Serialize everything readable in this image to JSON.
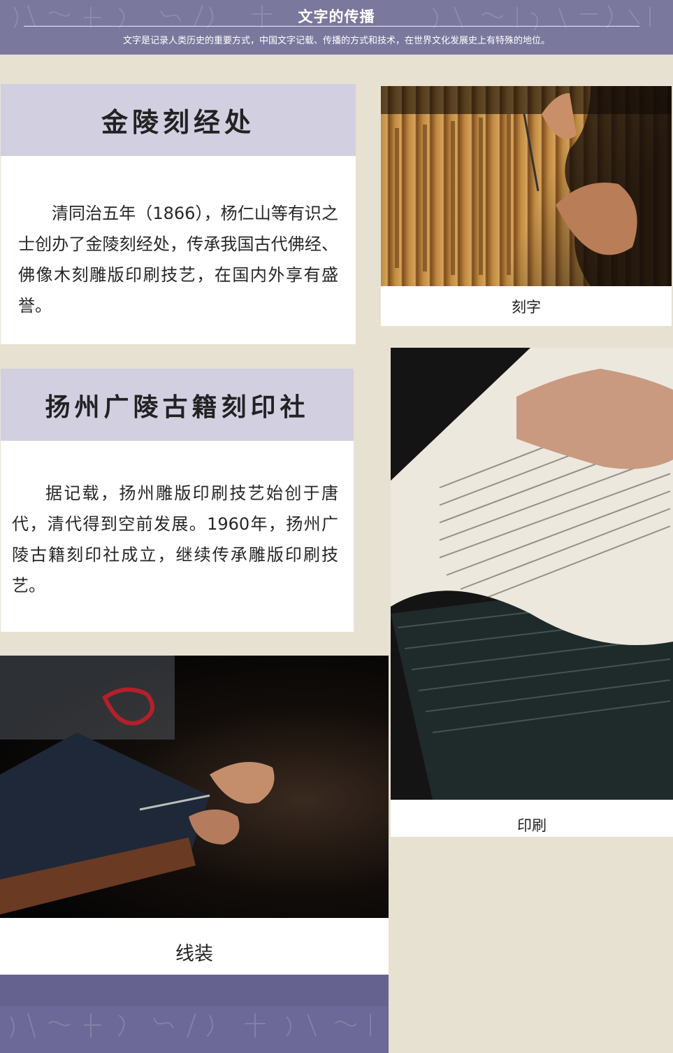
{
  "header": {
    "title": "文字的传播",
    "subtitle": "文字是记录人类历史的重要方式，中国文字记载、传播的方式和技术，在世界文化发展史上有特殊的地位。"
  },
  "sections": [
    {
      "title": "金陵刻经处",
      "body": "清同治五年（1866），杨仁山等有识之士创办了金陵刻经处，传承我国古代佛经、佛像木刻雕版印刷技艺，在国内外享有盛誉。"
    },
    {
      "title": "扬州广陵古籍刻印社",
      "body": "据记载，扬州雕版印刷技艺始创于唐代，清代得到空前发展。1960年，扬州广陵古籍刻印社成立，继续传承雕版印刷技艺。"
    }
  ],
  "photos": [
    {
      "caption": "刻字",
      "icon": "carving-photo"
    },
    {
      "caption": "印刷",
      "icon": "printing-photo"
    },
    {
      "caption": "线装",
      "icon": "binding-photo"
    }
  ],
  "colors": {
    "band": "#7b789e",
    "card_head": "#d2cfe1",
    "page_bg": "#e6e1d1"
  }
}
